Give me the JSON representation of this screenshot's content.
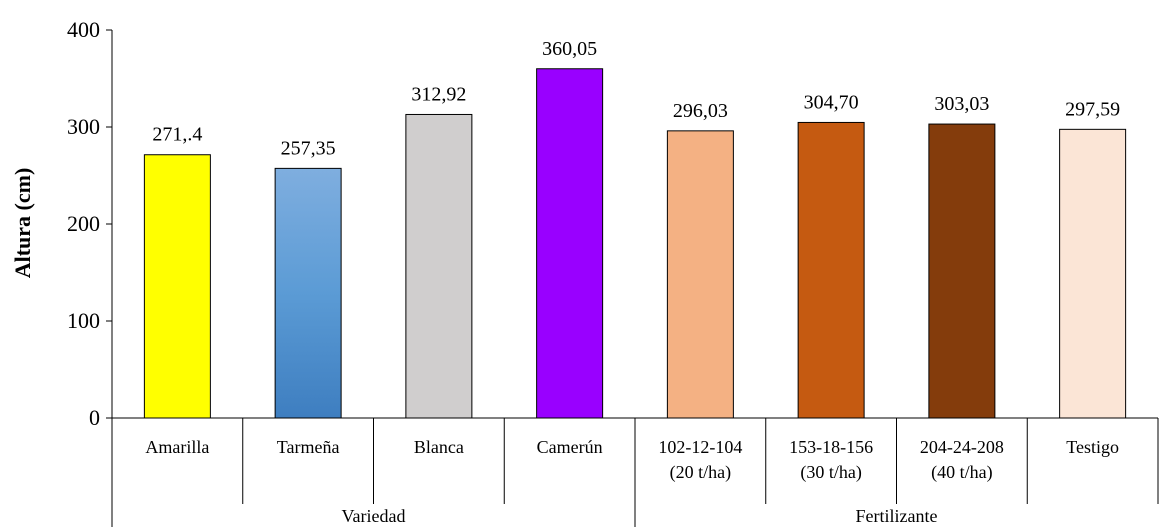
{
  "chart_data": {
    "type": "bar",
    "ylabel": "Altura (cm)",
    "ylim": [
      0,
      400
    ],
    "yticks": [
      "0",
      "100",
      "200",
      "300",
      "400"
    ],
    "grid": false,
    "legend": "none",
    "categories": [
      {
        "lines": [
          "Amarilla"
        ],
        "value": 271.4,
        "label": "271,.4",
        "color": "#FFFF00"
      },
      {
        "lines": [
          "Tarmeña"
        ],
        "value": 257.35,
        "label": "257,35",
        "color": "gradient-blue"
      },
      {
        "lines": [
          "Blanca"
        ],
        "value": 312.92,
        "label": "312,92",
        "color": "#D0CECE"
      },
      {
        "lines": [
          "Camerún"
        ],
        "value": 360.05,
        "label": "360,05",
        "color": "#9900FF"
      },
      {
        "lines": [
          "102-12-104",
          "(20 t/ha)"
        ],
        "value": 296.03,
        "label": "296,03",
        "color": "#F4B183"
      },
      {
        "lines": [
          "153-18-156",
          "(30 t/ha)"
        ],
        "value": 304.7,
        "label": "304,70",
        "color": "#C55A11"
      },
      {
        "lines": [
          "204-24-208",
          "(40 t/ha)"
        ],
        "value": 303.03,
        "label": "303,03",
        "color": "#843C0C"
      },
      {
        "lines": [
          "Testigo"
        ],
        "value": 297.59,
        "label": "297,59",
        "color": "#FBE5D6"
      }
    ],
    "groups": [
      {
        "name": "Variedad",
        "count": 4
      },
      {
        "name": "Fertilizante",
        "count": 4
      }
    ]
  }
}
